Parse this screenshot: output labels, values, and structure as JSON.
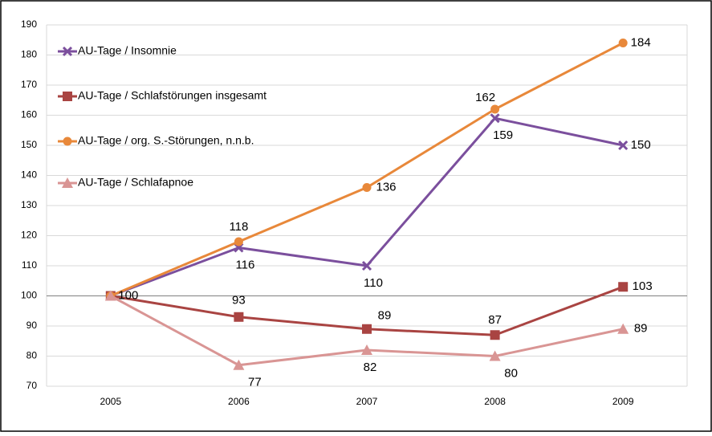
{
  "chart_data": {
    "type": "line",
    "categories": [
      "2005",
      "2006",
      "2007",
      "2008",
      "2009"
    ],
    "series": [
      {
        "name": "AU-Tage / Insomnie",
        "color": "#7b4f9d",
        "marker": "cross",
        "values": [
          100,
          116,
          110,
          159,
          150
        ]
      },
      {
        "name": "AU-Tage / Schlafstörungen insgesamt",
        "color": "#a94442",
        "marker": "square",
        "values": [
          100,
          93,
          89,
          87,
          103
        ]
      },
      {
        "name": "AU-Tage / org. S.-Störungen, n.n.b.",
        "color": "#e8883a",
        "marker": "circle",
        "values": [
          100,
          118,
          136,
          162,
          184
        ]
      },
      {
        "name": "AU-Tage / Schlafapnoe",
        "color": "#d99594",
        "marker": "triangle",
        "values": [
          100,
          77,
          82,
          80,
          89
        ]
      }
    ],
    "ylim": [
      70,
      190
    ],
    "yticks": [
      70,
      80,
      90,
      100,
      110,
      120,
      130,
      140,
      150,
      160,
      170,
      180,
      190
    ],
    "grid": true,
    "axis_crosses": 100,
    "legend": "upper left"
  }
}
